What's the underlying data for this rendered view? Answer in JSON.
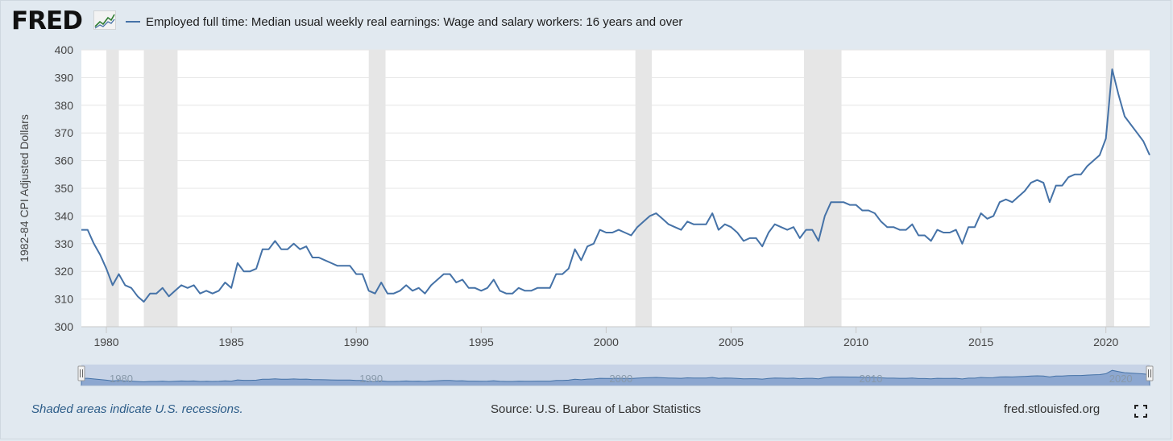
{
  "header": {
    "logo_text": "FRED",
    "legend_label": "Employed full time: Median usual weekly real earnings: Wage and salary workers: 16 years and over",
    "series_color": "#4572a7"
  },
  "footer": {
    "recession_note": "Shaded areas indicate U.S. recessions.",
    "source": "Source: U.S. Bureau of Labor Statistics",
    "site": "fred.stlouisfed.org"
  },
  "navigator": {
    "labels": [
      "1980",
      "1990",
      "2000",
      "2010",
      "2020"
    ]
  },
  "chart_data": {
    "type": "line",
    "ylabel": "1982-84 CPI Adjusted Dollars",
    "ylim": [
      300,
      400
    ],
    "yticks": [
      400,
      390,
      380,
      370,
      360,
      350,
      340,
      330,
      320,
      310,
      300
    ],
    "xlim": [
      1979.0,
      2021.75
    ],
    "xticks": [
      1980,
      1985,
      1990,
      1995,
      2000,
      2005,
      2010,
      2015,
      2020
    ],
    "grid": true,
    "recessions": [
      [
        1980.0,
        1980.5
      ],
      [
        1981.5,
        1982.85
      ],
      [
        1990.5,
        1991.17
      ],
      [
        2001.17,
        2001.83
      ],
      [
        2007.92,
        2009.42
      ],
      [
        2020.0,
        2020.33
      ]
    ],
    "series": [
      {
        "name": "Employed full time: Median usual weekly real earnings: Wage and salary workers: 16 years and over",
        "x": [
          1979.0,
          1979.25,
          1979.5,
          1979.75,
          1980.0,
          1980.25,
          1980.5,
          1980.75,
          1981.0,
          1981.25,
          1981.5,
          1981.75,
          1982.0,
          1982.25,
          1982.5,
          1982.75,
          1983.0,
          1983.25,
          1983.5,
          1983.75,
          1984.0,
          1984.25,
          1984.5,
          1984.75,
          1985.0,
          1985.25,
          1985.5,
          1985.75,
          1986.0,
          1986.25,
          1986.5,
          1986.75,
          1987.0,
          1987.25,
          1987.5,
          1987.75,
          1988.0,
          1988.25,
          1988.5,
          1988.75,
          1989.0,
          1989.25,
          1989.5,
          1989.75,
          1990.0,
          1990.25,
          1990.5,
          1990.75,
          1991.0,
          1991.25,
          1991.5,
          1991.75,
          1992.0,
          1992.25,
          1992.5,
          1992.75,
          1993.0,
          1993.25,
          1993.5,
          1993.75,
          1994.0,
          1994.25,
          1994.5,
          1994.75,
          1995.0,
          1995.25,
          1995.5,
          1995.75,
          1996.0,
          1996.25,
          1996.5,
          1996.75,
          1997.0,
          1997.25,
          1997.5,
          1997.75,
          1998.0,
          1998.25,
          1998.5,
          1998.75,
          1999.0,
          1999.25,
          1999.5,
          1999.75,
          2000.0,
          2000.25,
          2000.5,
          2000.75,
          2001.0,
          2001.25,
          2001.5,
          2001.75,
          2002.0,
          2002.25,
          2002.5,
          2002.75,
          2003.0,
          2003.25,
          2003.5,
          2003.75,
          2004.0,
          2004.25,
          2004.5,
          2004.75,
          2005.0,
          2005.25,
          2005.5,
          2005.75,
          2006.0,
          2006.25,
          2006.5,
          2006.75,
          2007.0,
          2007.25,
          2007.5,
          2007.75,
          2008.0,
          2008.25,
          2008.5,
          2008.75,
          2009.0,
          2009.25,
          2009.5,
          2009.75,
          2010.0,
          2010.25,
          2010.5,
          2010.75,
          2011.0,
          2011.25,
          2011.5,
          2011.75,
          2012.0,
          2012.25,
          2012.5,
          2012.75,
          2013.0,
          2013.25,
          2013.5,
          2013.75,
          2014.0,
          2014.25,
          2014.5,
          2014.75,
          2015.0,
          2015.25,
          2015.5,
          2015.75,
          2016.0,
          2016.25,
          2016.5,
          2016.75,
          2017.0,
          2017.25,
          2017.5,
          2017.75,
          2018.0,
          2018.25,
          2018.5,
          2018.75,
          2019.0,
          2019.25,
          2019.5,
          2019.75,
          2020.0,
          2020.25,
          2020.5,
          2020.75,
          2021.0,
          2021.25,
          2021.5,
          2021.75
        ],
        "y": [
          335,
          335,
          330,
          326,
          321,
          315,
          319,
          315,
          314,
          311,
          309,
          312,
          312,
          314,
          311,
          313,
          315,
          314,
          315,
          312,
          313,
          312,
          313,
          316,
          314,
          323,
          320,
          320,
          321,
          328,
          328,
          331,
          328,
          328,
          330,
          328,
          329,
          325,
          325,
          324,
          323,
          322,
          322,
          322,
          319,
          319,
          313,
          312,
          316,
          312,
          312,
          313,
          315,
          313,
          314,
          312,
          315,
          317,
          319,
          319,
          316,
          317,
          314,
          314,
          313,
          314,
          317,
          313,
          312,
          312,
          314,
          313,
          313,
          314,
          314,
          314,
          319,
          319,
          321,
          328,
          324,
          329,
          330,
          335,
          334,
          334,
          335,
          334,
          333,
          336,
          338,
          340,
          341,
          339,
          337,
          336,
          335,
          338,
          337,
          337,
          337,
          341,
          335,
          337,
          336,
          334,
          331,
          332,
          332,
          329,
          334,
          337,
          336,
          335,
          336,
          332,
          335,
          335,
          331,
          340,
          345,
          345,
          345,
          344,
          344,
          342,
          342,
          341,
          338,
          336,
          336,
          335,
          335,
          337,
          333,
          333,
          331,
          335,
          334,
          334,
          335,
          330,
          336,
          336,
          341,
          339,
          340,
          345,
          346,
          345,
          347,
          349,
          352,
          353,
          352,
          345,
          351,
          351,
          354,
          355,
          355,
          358,
          360,
          362,
          368,
          393,
          384,
          376,
          373,
          370,
          367,
          362
        ]
      }
    ]
  }
}
